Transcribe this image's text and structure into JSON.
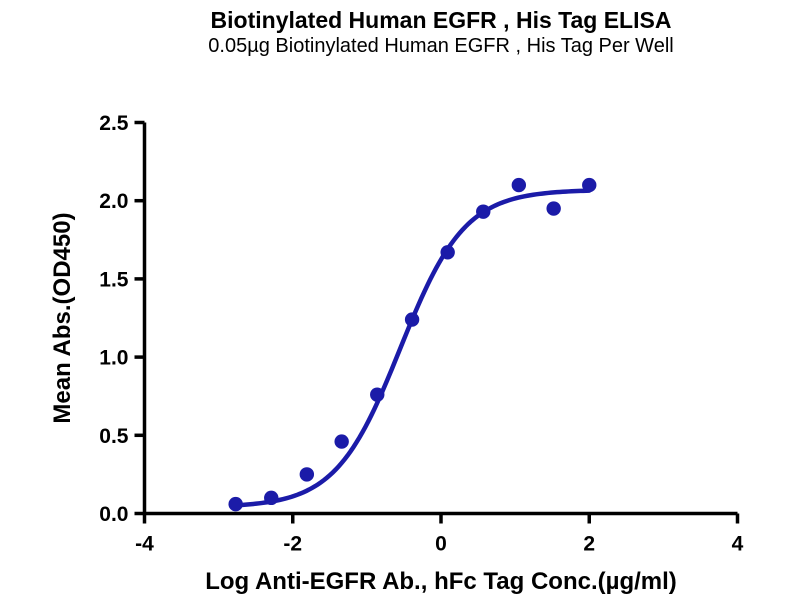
{
  "chart_data": {
    "type": "scatter",
    "title": "Biotinylated Human EGFR , His Tag ELISA",
    "subtitle": "0.05µg Biotinylated Human EGFR , His Tag Per Well",
    "xlabel": "Log Anti-EGFR Ab., hFc Tag Conc.(µg/ml)",
    "ylabel": "Mean Abs.(OD450)",
    "xlim": [
      -4,
      4
    ],
    "ylim": [
      0.0,
      2.5
    ],
    "grid": false,
    "legend": false,
    "x_ticks": [
      {
        "value": -4,
        "label": "-4"
      },
      {
        "value": -2,
        "label": "-2"
      },
      {
        "value": 0,
        "label": "0"
      },
      {
        "value": 2,
        "label": "2"
      },
      {
        "value": 4,
        "label": "4"
      }
    ],
    "y_ticks": [
      {
        "value": 0.0,
        "label": "0.0"
      },
      {
        "value": 0.5,
        "label": "0.5"
      },
      {
        "value": 1.0,
        "label": "1.0"
      },
      {
        "value": 1.5,
        "label": "1.5"
      },
      {
        "value": 2.0,
        "label": "2.0"
      },
      {
        "value": 2.5,
        "label": "2.5"
      }
    ],
    "points": [
      {
        "x": -2.77,
        "y": 0.06
      },
      {
        "x": -2.29,
        "y": 0.1
      },
      {
        "x": -1.81,
        "y": 0.25
      },
      {
        "x": -1.34,
        "y": 0.46
      },
      {
        "x": -0.86,
        "y": 0.76
      },
      {
        "x": -0.39,
        "y": 1.24
      },
      {
        "x": 0.09,
        "y": 1.67
      },
      {
        "x": 0.57,
        "y": 1.93
      },
      {
        "x": 1.05,
        "y": 2.1
      },
      {
        "x": 1.52,
        "y": 1.95
      },
      {
        "x": 2.0,
        "y": 2.1
      }
    ],
    "fit_curve": {
      "model": "4PL-sigmoid",
      "bottom": 0.04,
      "top": 2.07,
      "log_ec50": -0.55,
      "hill_slope": 1.0,
      "x_range": [
        -2.77,
        2.0
      ]
    },
    "colors": {
      "series": "#1b1ba8",
      "axis": "#000000",
      "background": "#ffffff"
    }
  }
}
